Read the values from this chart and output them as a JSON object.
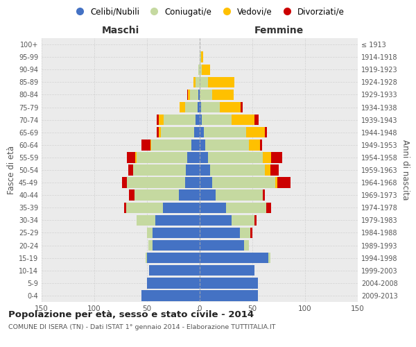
{
  "age_groups": [
    "0-4",
    "5-9",
    "10-14",
    "15-19",
    "20-24",
    "25-29",
    "30-34",
    "35-39",
    "40-44",
    "45-49",
    "50-54",
    "55-59",
    "60-64",
    "65-69",
    "70-74",
    "75-79",
    "80-84",
    "85-89",
    "90-94",
    "95-99",
    "100+"
  ],
  "birth_years": [
    "2009-2013",
    "2004-2008",
    "1999-2003",
    "1994-1998",
    "1989-1993",
    "1984-1988",
    "1979-1983",
    "1974-1978",
    "1969-1973",
    "1964-1968",
    "1959-1963",
    "1954-1958",
    "1949-1953",
    "1944-1948",
    "1939-1943",
    "1934-1938",
    "1929-1933",
    "1924-1928",
    "1919-1923",
    "1914-1918",
    "≤ 1913"
  ],
  "maschi_celibi": [
    55,
    50,
    48,
    50,
    45,
    45,
    42,
    35,
    20,
    14,
    13,
    12,
    8,
    5,
    4,
    2,
    1,
    0,
    0,
    0,
    0
  ],
  "maschi_coniugati": [
    0,
    0,
    0,
    1,
    4,
    5,
    18,
    35,
    42,
    55,
    50,
    48,
    38,
    32,
    30,
    12,
    8,
    4,
    1,
    0,
    0
  ],
  "maschi_vedovi": [
    0,
    0,
    0,
    0,
    0,
    0,
    0,
    0,
    0,
    0,
    0,
    1,
    1,
    2,
    5,
    5,
    2,
    2,
    0,
    0,
    0
  ],
  "maschi_divorziati": [
    0,
    0,
    0,
    0,
    0,
    0,
    0,
    2,
    5,
    5,
    5,
    8,
    8,
    2,
    2,
    0,
    1,
    0,
    0,
    0,
    0
  ],
  "femmine_nubili": [
    55,
    55,
    52,
    65,
    42,
    38,
    30,
    25,
    15,
    12,
    10,
    8,
    5,
    4,
    2,
    1,
    0,
    0,
    0,
    0,
    0
  ],
  "femmine_coniugate": [
    0,
    0,
    0,
    2,
    5,
    10,
    22,
    38,
    45,
    60,
    52,
    52,
    42,
    40,
    28,
    18,
    12,
    8,
    2,
    1,
    0
  ],
  "femmine_vedove": [
    0,
    0,
    0,
    0,
    0,
    0,
    0,
    0,
    0,
    2,
    5,
    8,
    10,
    18,
    22,
    20,
    20,
    25,
    8,
    2,
    0
  ],
  "femmine_divorziate": [
    0,
    0,
    0,
    0,
    0,
    2,
    2,
    5,
    2,
    12,
    8,
    10,
    2,
    2,
    4,
    2,
    0,
    0,
    0,
    0,
    0
  ],
  "colors": {
    "celibi": "#4472c4",
    "coniugati": "#c5d9a0",
    "vedovi": "#ffc000",
    "divorziati": "#cc0000"
  },
  "xlim": 150,
  "title": "Popolazione per età, sesso e stato civile - 2014",
  "subtitle": "COMUNE DI ISERA (TN) - Dati ISTAT 1° gennaio 2014 - Elaborazione TUTTITALIA.IT",
  "ylabel_left": "Fasce di età",
  "ylabel_right": "Anni di nascita",
  "legend_labels": [
    "Celibi/Nubili",
    "Coniugati/e",
    "Vedovi/e",
    "Divorziati/e"
  ],
  "grid_color": "#cccccc"
}
